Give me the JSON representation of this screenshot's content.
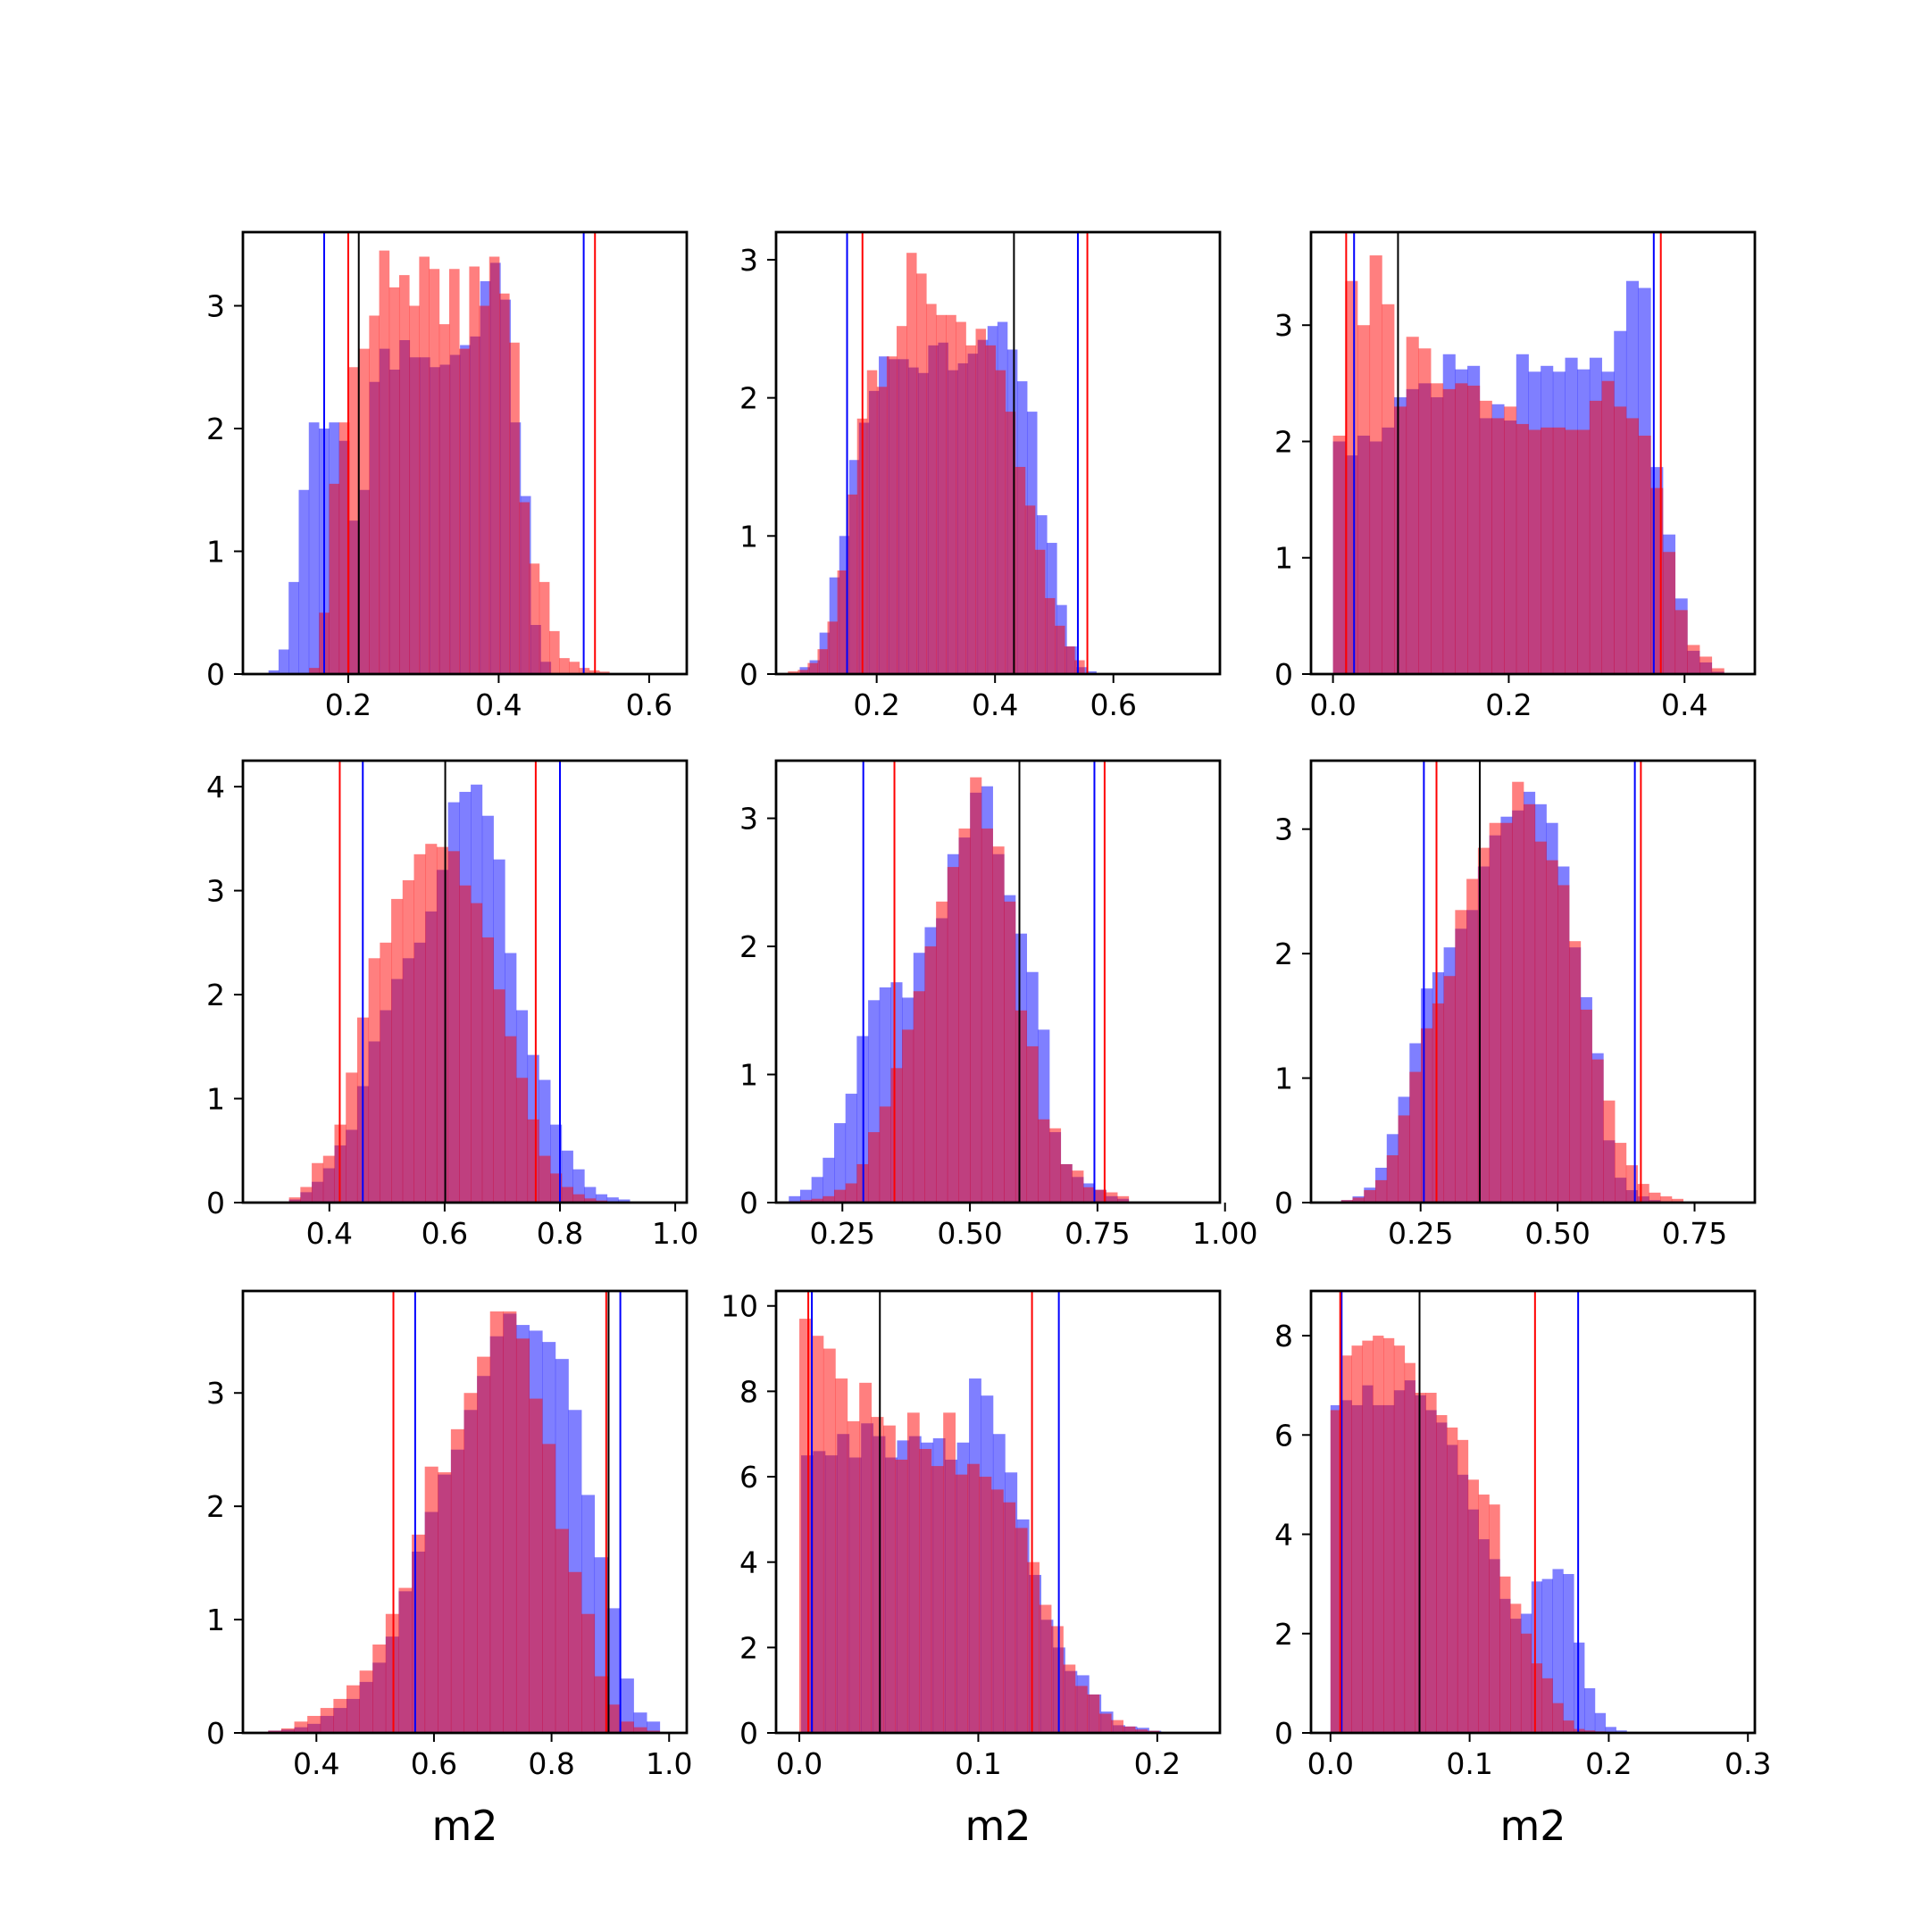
{
  "figure": {
    "background": "#ffffff"
  },
  "style": {
    "blue_fill": "#0000ff",
    "red_fill": "#ff0000",
    "purple_overlap": "#c03a78",
    "blue_line": "#0000ff",
    "red_line": "#ff0000",
    "black_line": "#000000"
  },
  "chart_data": [
    {
      "type": "bar",
      "panel": "row1-col1",
      "xlabel": "",
      "xlim": [
        0.06,
        0.65
      ],
      "ylim": [
        0,
        3.6
      ],
      "xticks": [
        "0.2",
        "0.4",
        "0.6"
      ],
      "xtick_values": [
        0.2,
        0.4,
        0.6
      ],
      "yticks": [
        "0",
        "1",
        "2",
        "3"
      ],
      "ytick_values": [
        0,
        1,
        2,
        3
      ],
      "series": [
        {
          "color": "blue",
          "x_start": 0.094,
          "bin_width": 0.0134,
          "values": [
            0.03,
            0.2,
            0.75,
            1.5,
            2.05,
            2.0,
            2.05,
            1.9,
            1.25,
            1.5,
            2.38,
            2.65,
            2.48,
            2.72,
            2.58,
            2.58,
            2.5,
            2.52,
            2.6,
            2.68,
            2.75,
            3.2,
            3.35,
            3.05,
            2.05,
            1.45,
            0.4,
            0.1
          ]
        },
        {
          "color": "red",
          "x_start": 0.148,
          "bin_width": 0.0133,
          "values": [
            0.05,
            0.5,
            1.55,
            2.05,
            2.5,
            2.65,
            2.92,
            3.45,
            3.15,
            3.25,
            3.0,
            3.4,
            3.3,
            2.85,
            3.3,
            2.65,
            3.32,
            3.0,
            3.4,
            3.1,
            2.7,
            1.4,
            0.9,
            0.75,
            0.35,
            0.13,
            0.1,
            0.05,
            0.03,
            0.02
          ]
        }
      ],
      "vlines": {
        "blue": [
          0.168,
          0.513
        ],
        "red": [
          0.2,
          0.528
        ],
        "black": [
          0.214
        ]
      }
    },
    {
      "type": "bar",
      "panel": "row1-col2",
      "xlabel": "",
      "xlim": [
        0.03,
        0.78
      ],
      "ylim": [
        0,
        3.2
      ],
      "xticks": [
        "0.2",
        "0.4",
        "0.6"
      ],
      "xtick_values": [
        0.2,
        0.4,
        0.6
      ],
      "yticks": [
        "0",
        "1",
        "2",
        "3"
      ],
      "ytick_values": [
        0,
        1,
        2,
        3
      ],
      "series": [
        {
          "color": "blue",
          "x_start": 0.07,
          "bin_width": 0.0167,
          "values": [
            0.05,
            0.1,
            0.3,
            0.7,
            1.0,
            1.55,
            1.82,
            2.05,
            2.3,
            2.28,
            2.28,
            2.22,
            2.18,
            2.38,
            2.4,
            2.2,
            2.25,
            2.32,
            2.42,
            2.52,
            2.55,
            2.35,
            2.12,
            1.9,
            1.15,
            0.95,
            0.5,
            0.2,
            0.05,
            0.02
          ]
        },
        {
          "color": "red",
          "x_start": 0.05,
          "bin_width": 0.0167,
          "values": [
            0.02,
            0.03,
            0.08,
            0.18,
            0.38,
            0.75,
            1.3,
            1.85,
            2.2,
            2.08,
            2.3,
            2.52,
            3.05,
            2.9,
            2.68,
            2.6,
            2.6,
            2.55,
            2.38,
            2.5,
            2.38,
            2.2,
            1.9,
            1.5,
            1.22,
            0.9,
            0.55,
            0.35,
            0.2,
            0.1
          ]
        }
      ],
      "vlines": {
        "blue": [
          0.15,
          0.54
        ],
        "red": [
          0.176,
          0.556
        ],
        "black": [
          0.432
        ]
      }
    },
    {
      "type": "bar",
      "panel": "row1-col3",
      "xlabel": "",
      "xlim": [
        -0.025,
        0.48
      ],
      "ylim": [
        0,
        3.8
      ],
      "xticks": [
        "0.0",
        "0.2",
        "0.4"
      ],
      "xtick_values": [
        0.0,
        0.2,
        0.4
      ],
      "yticks": [
        "0",
        "1",
        "2",
        "3"
      ],
      "ytick_values": [
        0,
        1,
        2,
        3
      ],
      "series": [
        {
          "color": "blue",
          "x_start": 0.0,
          "bin_width": 0.0139,
          "values": [
            2.0,
            1.88,
            2.05,
            2.0,
            2.12,
            2.38,
            2.45,
            2.5,
            2.38,
            2.75,
            2.62,
            2.65,
            2.2,
            2.32,
            2.18,
            2.75,
            2.6,
            2.65,
            2.6,
            2.72,
            2.62,
            2.72,
            2.6,
            2.95,
            3.38,
            3.32,
            1.78,
            1.2,
            0.65,
            0.2,
            0.1,
            0.02
          ]
        },
        {
          "color": "red",
          "x_start": 0.0,
          "bin_width": 0.0139,
          "values": [
            2.05,
            3.38,
            3.0,
            3.6,
            3.18,
            2.3,
            2.9,
            2.8,
            2.5,
            2.45,
            2.5,
            2.48,
            2.35,
            2.2,
            2.3,
            2.15,
            2.1,
            2.12,
            2.12,
            2.1,
            2.1,
            2.35,
            2.52,
            2.3,
            2.2,
            2.05,
            1.6,
            1.05,
            0.55,
            0.25,
            0.15,
            0.05
          ]
        }
      ],
      "vlines": {
        "blue": [
          0.024,
          0.365
        ],
        "red": [
          0.015,
          0.373
        ],
        "black": [
          0.074
        ]
      }
    },
    {
      "type": "bar",
      "panel": "row2-col1",
      "xlabel": "",
      "xlim": [
        0.25,
        1.02
      ],
      "ylim": [
        0,
        4.25
      ],
      "xticks": [
        "0.4",
        "0.6",
        "0.8",
        "1.0"
      ],
      "xtick_values": [
        0.4,
        0.6,
        0.8,
        1.0
      ],
      "yticks": [
        "0",
        "1",
        "2",
        "3",
        "4"
      ],
      "ytick_values": [
        0,
        1,
        2,
        3,
        4
      ],
      "series": [
        {
          "color": "blue",
          "x_start": 0.33,
          "bin_width": 0.0197,
          "values": [
            0.03,
            0.1,
            0.2,
            0.33,
            0.55,
            0.7,
            1.12,
            1.55,
            1.85,
            2.15,
            2.35,
            2.5,
            2.8,
            3.2,
            3.85,
            3.95,
            4.02,
            3.72,
            3.3,
            2.4,
            1.85,
            1.42,
            1.18,
            0.75,
            0.5,
            0.32,
            0.15,
            0.08,
            0.05,
            0.03
          ]
        },
        {
          "color": "red",
          "x_start": 0.33,
          "bin_width": 0.0197,
          "values": [
            0.05,
            0.15,
            0.38,
            0.45,
            0.75,
            1.25,
            1.78,
            2.35,
            2.5,
            2.92,
            3.1,
            3.35,
            3.45,
            3.42,
            3.38,
            3.05,
            2.88,
            2.55,
            2.05,
            1.6,
            1.2,
            0.8,
            0.45,
            0.28,
            0.15,
            0.08,
            0.04,
            0.02,
            0.01,
            0.01
          ]
        }
      ],
      "vlines": {
        "blue": [
          0.458,
          0.8
        ],
        "red": [
          0.418,
          0.758
        ],
        "black": [
          0.601
        ]
      }
    },
    {
      "type": "bar",
      "panel": "row2-col2",
      "xlabel": "",
      "xlim": [
        0.12,
        0.99
      ],
      "ylim": [
        0,
        3.45
      ],
      "xticks": [
        "0.25",
        "0.50",
        "0.75",
        "1.00"
      ],
      "xtick_values": [
        0.25,
        0.5,
        0.75,
        1.0
      ],
      "yticks": [
        "0",
        "1",
        "2",
        "3"
      ],
      "ytick_values": [
        0,
        1,
        2,
        3
      ],
      "series": [
        {
          "color": "blue",
          "x_start": 0.145,
          "bin_width": 0.0222,
          "values": [
            0.05,
            0.1,
            0.2,
            0.35,
            0.62,
            0.85,
            1.3,
            1.58,
            1.68,
            1.72,
            1.6,
            1.95,
            2.15,
            2.22,
            2.72,
            2.85,
            3.2,
            3.25,
            2.72,
            2.4,
            2.1,
            1.8,
            1.35,
            0.55,
            0.3,
            0.2,
            0.15,
            0.1,
            0.05,
            0.03
          ]
        },
        {
          "color": "red",
          "x_start": 0.145,
          "bin_width": 0.0222,
          "values": [
            0.01,
            0.02,
            0.03,
            0.05,
            0.1,
            0.15,
            0.3,
            0.55,
            0.75,
            1.05,
            1.35,
            1.65,
            2.0,
            2.35,
            2.62,
            2.92,
            3.32,
            2.92,
            2.78,
            2.35,
            1.5,
            1.22,
            0.65,
            0.58,
            0.3,
            0.25,
            0.12,
            0.1,
            0.08,
            0.05
          ]
        }
      ],
      "vlines": {
        "blue": [
          0.291,
          0.744
        ],
        "red": [
          0.352,
          0.764
        ],
        "black": [
          0.597
        ]
      }
    },
    {
      "type": "bar",
      "panel": "row2-col3",
      "xlabel": "",
      "xlim": [
        0.05,
        0.86
      ],
      "ylim": [
        0,
        3.55
      ],
      "xticks": [
        "0.25",
        "0.50",
        "0.75"
      ],
      "xtick_values": [
        0.25,
        0.5,
        0.75
      ],
      "yticks": [
        "0",
        "1",
        "2",
        "3"
      ],
      "ytick_values": [
        0,
        1,
        2,
        3
      ],
      "series": [
        {
          "color": "blue",
          "x_start": 0.105,
          "bin_width": 0.0208,
          "values": [
            0.02,
            0.05,
            0.12,
            0.28,
            0.55,
            0.85,
            1.28,
            1.72,
            1.85,
            2.05,
            2.2,
            2.35,
            2.7,
            2.95,
            3.1,
            3.15,
            3.3,
            3.2,
            3.05,
            2.7,
            2.05,
            1.65,
            1.2,
            0.5,
            0.2,
            0.1,
            0.05,
            0.02,
            0.01,
            0.01
          ]
        },
        {
          "color": "red",
          "x_start": 0.105,
          "bin_width": 0.0208,
          "values": [
            0.02,
            0.04,
            0.1,
            0.18,
            0.38,
            0.7,
            1.05,
            1.4,
            1.6,
            1.82,
            2.35,
            2.6,
            2.85,
            3.05,
            3.05,
            3.38,
            3.2,
            2.9,
            2.75,
            2.55,
            2.1,
            1.55,
            1.15,
            0.82,
            0.48,
            0.3,
            0.15,
            0.08,
            0.05,
            0.03
          ]
        }
      ],
      "vlines": {
        "blue": [
          0.256,
          0.641
        ],
        "red": [
          0.279,
          0.652
        ],
        "black": [
          0.358
        ]
      }
    },
    {
      "type": "bar",
      "panel": "row3-col1",
      "xlabel": "m2",
      "xlim": [
        0.275,
        1.03
      ],
      "ylim": [
        0,
        3.9
      ],
      "xticks": [
        "0.4",
        "0.6",
        "0.8",
        "1.0"
      ],
      "xtick_values": [
        0.4,
        0.6,
        0.8,
        1.0
      ],
      "yticks": [
        "0",
        "1",
        "2",
        "3"
      ],
      "ytick_values": [
        0,
        1,
        2,
        3
      ],
      "series": [
        {
          "color": "blue",
          "x_start": 0.318,
          "bin_width": 0.0222,
          "values": [
            0.02,
            0.03,
            0.05,
            0.08,
            0.15,
            0.22,
            0.3,
            0.45,
            0.62,
            0.85,
            1.25,
            1.6,
            1.95,
            2.28,
            2.5,
            2.85,
            3.15,
            3.5,
            3.7,
            3.6,
            3.55,
            3.45,
            3.3,
            2.85,
            2.1,
            1.55,
            1.1,
            0.48,
            0.18,
            0.1
          ]
        },
        {
          "color": "red",
          "x_start": 0.318,
          "bin_width": 0.0222,
          "values": [
            0.02,
            0.04,
            0.1,
            0.15,
            0.22,
            0.3,
            0.42,
            0.55,
            0.78,
            1.05,
            1.28,
            1.75,
            2.35,
            2.3,
            2.68,
            3.0,
            3.32,
            3.72,
            3.72,
            3.48,
            2.95,
            2.55,
            1.8,
            1.42,
            1.05,
            0.5,
            0.25,
            0.1,
            0.05,
            0.02
          ]
        }
      ],
      "vlines": {
        "blue": [
          0.568,
          0.917
        ],
        "red": [
          0.531,
          0.893
        ],
        "black": [
          0.897
        ]
      }
    },
    {
      "type": "bar",
      "panel": "row3-col2",
      "xlabel": "m2",
      "xlim": [
        -0.013,
        0.235
      ],
      "ylim": [
        0,
        10.35
      ],
      "xticks": [
        "0.0",
        "0.1",
        "0.2"
      ],
      "xtick_values": [
        0.0,
        0.1,
        0.2
      ],
      "yticks": [
        "0",
        "2",
        "4",
        "6",
        "8",
        "10"
      ],
      "ytick_values": [
        0,
        2,
        4,
        6,
        8,
        10
      ],
      "series": [
        {
          "color": "blue",
          "x_start": 0.001,
          "bin_width": 0.0067,
          "values": [
            6.5,
            6.6,
            6.5,
            7.0,
            6.45,
            7.25,
            6.95,
            6.45,
            6.85,
            6.95,
            6.8,
            6.9,
            6.4,
            6.8,
            8.3,
            7.9,
            7.0,
            6.1,
            5.0,
            3.7,
            2.65,
            2.0,
            1.45,
            1.35,
            0.9,
            0.5,
            0.18,
            0.15,
            0.12,
            0.05
          ]
        },
        {
          "color": "red",
          "x_start": 0.0,
          "bin_width": 0.0067,
          "values": [
            9.7,
            9.3,
            9.0,
            8.3,
            7.3,
            8.2,
            7.4,
            7.2,
            6.4,
            7.5,
            6.65,
            6.25,
            7.5,
            6.05,
            6.3,
            6.0,
            5.7,
            5.4,
            4.8,
            4.0,
            3.0,
            2.5,
            1.6,
            1.1,
            0.9,
            0.45,
            0.3,
            0.15,
            0.08,
            0.05
          ]
        }
      ],
      "vlines": {
        "blue": [
          0.007,
          0.145
        ],
        "red": [
          0.005,
          0.13
        ],
        "black": [
          0.045
        ]
      }
    },
    {
      "type": "bar",
      "panel": "row3-col3",
      "xlabel": "m2",
      "xlim": [
        -0.014,
        0.305
      ],
      "ylim": [
        0,
        8.9
      ],
      "xticks": [
        "0.0",
        "0.1",
        "0.2",
        "0.3"
      ],
      "xtick_values": [
        0.0,
        0.1,
        0.2,
        0.3
      ],
      "yticks": [
        "0",
        "2",
        "4",
        "6",
        "8"
      ],
      "ytick_values": [
        0,
        2,
        4,
        6,
        8
      ],
      "series": [
        {
          "color": "blue",
          "x_start": 0.0,
          "bin_width": 0.0076,
          "values": [
            6.6,
            6.7,
            6.6,
            7.0,
            6.6,
            6.6,
            6.9,
            7.1,
            6.8,
            6.5,
            6.25,
            5.8,
            5.2,
            4.5,
            3.9,
            3.5,
            2.7,
            2.3,
            2.4,
            3.05,
            3.1,
            3.3,
            3.2,
            1.82,
            0.9,
            0.4,
            0.12,
            0.05,
            0.02,
            0.01
          ]
        },
        {
          "color": "red",
          "x_start": 0.0,
          "bin_width": 0.0076,
          "values": [
            6.5,
            7.6,
            7.8,
            7.9,
            8.0,
            7.95,
            7.8,
            7.45,
            6.85,
            6.85,
            6.4,
            6.15,
            5.9,
            5.1,
            4.8,
            4.6,
            3.15,
            2.6,
            2.0,
            1.4,
            1.1,
            0.6,
            0.25,
            0.08,
            0.05,
            0.03,
            0.02,
            0.01,
            0.01,
            0.0
          ]
        }
      ],
      "vlines": {
        "blue": [
          0.008,
          0.178
        ],
        "red": [
          0.007,
          0.147
        ],
        "black": [
          0.064
        ]
      }
    }
  ]
}
